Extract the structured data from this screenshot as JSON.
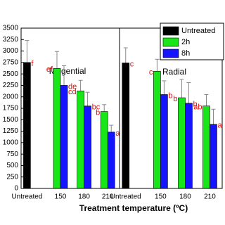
{
  "chart_data": {
    "type": "bar",
    "xlabel": "Treatment temperature (ºC)",
    "ylim": [
      0,
      3500
    ],
    "yticks": [
      0,
      250,
      500,
      750,
      1000,
      1250,
      1500,
      1750,
      2000,
      2250,
      2500,
      2750,
      3000,
      3250,
      3500
    ],
    "legend": "top-right",
    "panels": [
      {
        "title": "Tangential",
        "categories": [
          "Untreated",
          "150",
          "180",
          "210"
        ]
      },
      {
        "title": "Radial",
        "categories": [
          "Untreated",
          "150",
          "180",
          "210"
        ]
      }
    ],
    "series": [
      {
        "name": "Untreated",
        "color": "#000000",
        "values": [
          [
            2750,
            null,
            null,
            null
          ],
          [
            2740,
            null,
            null,
            null
          ]
        ],
        "errors": [
          [
            480,
            null,
            null,
            null
          ],
          [
            330,
            null,
            null,
            null
          ]
        ],
        "letters": [
          [
            "f",
            null,
            null,
            null
          ],
          [
            "c",
            null,
            null,
            null
          ]
        ]
      },
      {
        "name": "2h",
        "color": "#19e619",
        "values": [
          [
            null,
            2620,
            2130,
            1680
          ],
          [
            null,
            2560,
            1980,
            1800
          ]
        ],
        "errors": [
          [
            null,
            370,
            230,
            150
          ],
          [
            null,
            260,
            400,
            250
          ]
        ],
        "letters": [
          [
            null,
            "ef",
            "cd",
            "b"
          ],
          [
            null,
            "c",
            "b",
            "ab"
          ]
        ]
      },
      {
        "name": "8h",
        "color": "#1414ff",
        "values": [
          [
            null,
            2250,
            1800,
            1230
          ],
          [
            null,
            2050,
            1860,
            1400
          ]
        ],
        "errors": [
          [
            null,
            430,
            300,
            150
          ],
          [
            null,
            300,
            450,
            330
          ]
        ],
        "letters": [
          [
            null,
            "de",
            "bc",
            "a"
          ],
          [
            null,
            "b",
            "b",
            "a"
          ]
        ]
      }
    ]
  }
}
